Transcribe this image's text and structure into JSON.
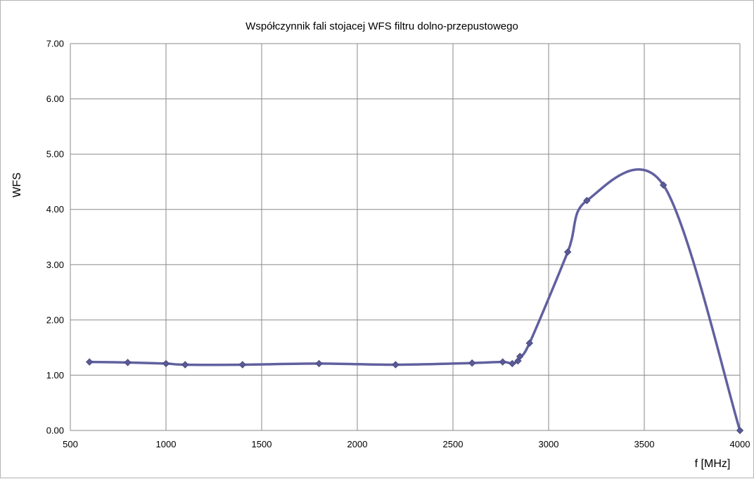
{
  "chart_data": {
    "type": "scatter",
    "title": "Współczynnik fali stojacej WFS filtru dolno-przepustowego",
    "xlabel": "f [MHz]",
    "ylabel": "WFS",
    "xlim": [
      500,
      4000
    ],
    "ylim": [
      0,
      7
    ],
    "xticks": [
      500,
      1000,
      1500,
      2000,
      2500,
      3000,
      3500,
      4000
    ],
    "yticks": [
      0,
      1,
      2,
      3,
      4,
      5,
      6,
      7
    ],
    "ytick_labels": [
      "0.00",
      "1.00",
      "2.00",
      "3.00",
      "4.00",
      "5.00",
      "6.00",
      "7.00"
    ],
    "grid": true,
    "legend": "none",
    "color": "#6060a0",
    "series": [
      {
        "x": [
          600,
          800,
          1000,
          1100,
          1400,
          1800,
          2200,
          2600,
          2760,
          2810,
          2840,
          2850,
          2900,
          3100,
          3200,
          3600,
          4000
        ],
        "y": [
          1.24,
          1.23,
          1.21,
          1.19,
          1.19,
          1.21,
          1.19,
          1.22,
          1.24,
          1.21,
          1.26,
          1.34,
          1.58,
          3.23,
          4.16,
          4.44,
          0.0
        ]
      }
    ]
  }
}
